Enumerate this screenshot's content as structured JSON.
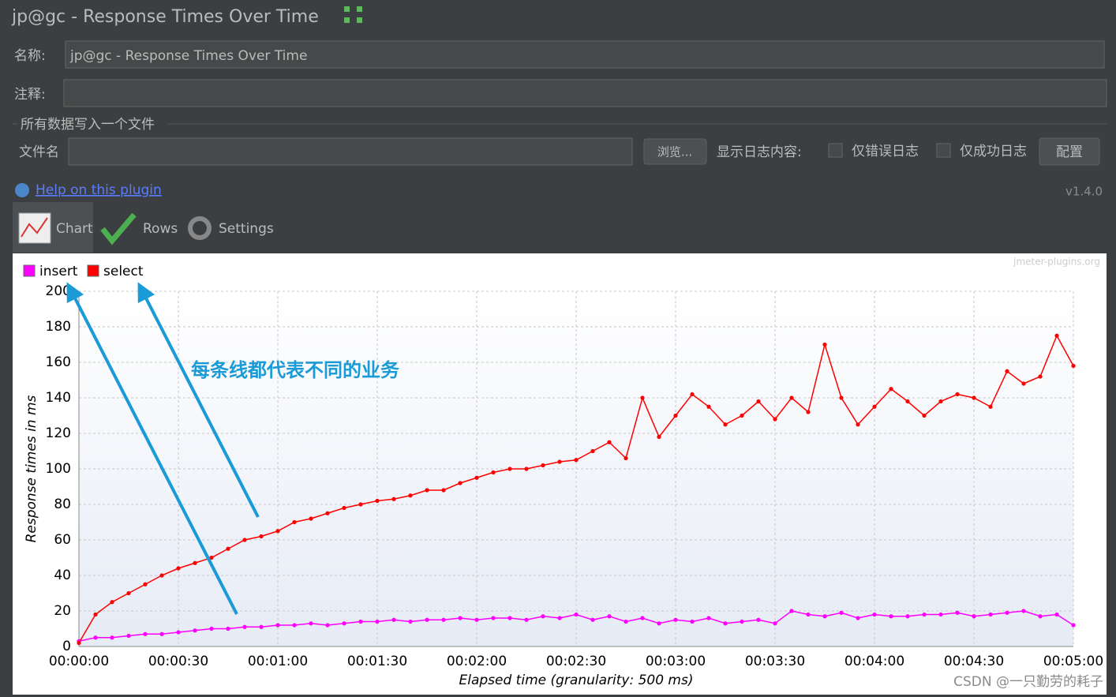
{
  "window": {
    "title": "jp@gc - Response Times Over Time",
    "version": "v1.4.0"
  },
  "form": {
    "name_label": "名称:",
    "name_value": "jp@gc - Response Times Over Time",
    "comment_label": "注释:",
    "file_group": "所有数据写入一个文件",
    "file_label": "文件名",
    "browse": "浏览...",
    "log_label": "显示日志内容:",
    "errors_only": "仅错误日志",
    "success_only": "仅成功日志",
    "configure": "配置"
  },
  "help_link": "Help on this plugin",
  "tabs": [
    "Chart",
    "Rows",
    "Settings"
  ],
  "watermark": "jmeter-plugins.org",
  "footer": "CSDN @一只勤劳的耗子",
  "chart_data": {
    "type": "line",
    "annotation": "每条线都代表不同的业务",
    "x_label": "Elapsed time (granularity: 500 ms)",
    "y_label": "Response times in ms",
    "x": [
      0,
      5,
      10,
      15,
      20,
      25,
      30,
      35,
      40,
      45,
      50,
      55,
      60,
      65,
      70,
      75,
      80,
      85,
      90,
      95,
      100,
      105,
      110,
      115,
      120,
      125,
      130,
      135,
      140,
      145,
      150,
      155,
      160,
      165,
      170,
      175,
      180,
      185,
      190,
      195,
      200,
      205,
      210,
      215,
      220,
      225,
      230,
      235,
      240,
      245,
      250,
      255,
      260,
      265,
      270,
      275,
      280,
      285,
      290,
      295,
      300
    ],
    "series": [
      {
        "name": "insert",
        "color": "#ff00ff",
        "values": [
          3,
          5,
          5,
          6,
          7,
          7,
          8,
          9,
          10,
          10,
          11,
          11,
          12,
          12,
          13,
          12,
          13,
          14,
          14,
          15,
          14,
          15,
          15,
          16,
          15,
          16,
          16,
          15,
          17,
          16,
          18,
          15,
          17,
          14,
          16,
          13,
          15,
          14,
          16,
          13,
          14,
          15,
          13,
          20,
          18,
          17,
          19,
          16,
          18,
          17,
          17,
          18,
          18,
          19,
          17,
          18,
          19,
          20,
          17,
          18,
          12
        ]
      },
      {
        "name": "select",
        "color": "#ff0000",
        "values": [
          2,
          18,
          25,
          30,
          35,
          40,
          44,
          47,
          50,
          55,
          60,
          62,
          65,
          70,
          72,
          75,
          78,
          80,
          82,
          83,
          85,
          88,
          88,
          92,
          95,
          98,
          100,
          100,
          102,
          104,
          105,
          110,
          115,
          106,
          140,
          118,
          130,
          142,
          135,
          125,
          130,
          138,
          128,
          140,
          132,
          170,
          140,
          125,
          135,
          145,
          138,
          130,
          138,
          142,
          140,
          135,
          155,
          148,
          152,
          175,
          158
        ]
      }
    ],
    "xlim": [
      0,
      300
    ],
    "xticks": [
      {
        "value": 0,
        "label": "00:00:00"
      },
      {
        "value": 30,
        "label": "00:00:30"
      },
      {
        "value": 60,
        "label": "00:01:00"
      },
      {
        "value": 90,
        "label": "00:01:30"
      },
      {
        "value": 120,
        "label": "00:02:00"
      },
      {
        "value": 150,
        "label": "00:02:30"
      },
      {
        "value": 180,
        "label": "00:03:00"
      },
      {
        "value": 210,
        "label": "00:03:30"
      },
      {
        "value": 240,
        "label": "00:04:00"
      },
      {
        "value": 270,
        "label": "00:04:30"
      },
      {
        "value": 300,
        "label": "00:05:00"
      }
    ],
    "ylim": [
      0,
      200
    ],
    "yticks": [
      0,
      20,
      40,
      60,
      80,
      100,
      120,
      140,
      160,
      180,
      200
    ],
    "grid": true
  }
}
